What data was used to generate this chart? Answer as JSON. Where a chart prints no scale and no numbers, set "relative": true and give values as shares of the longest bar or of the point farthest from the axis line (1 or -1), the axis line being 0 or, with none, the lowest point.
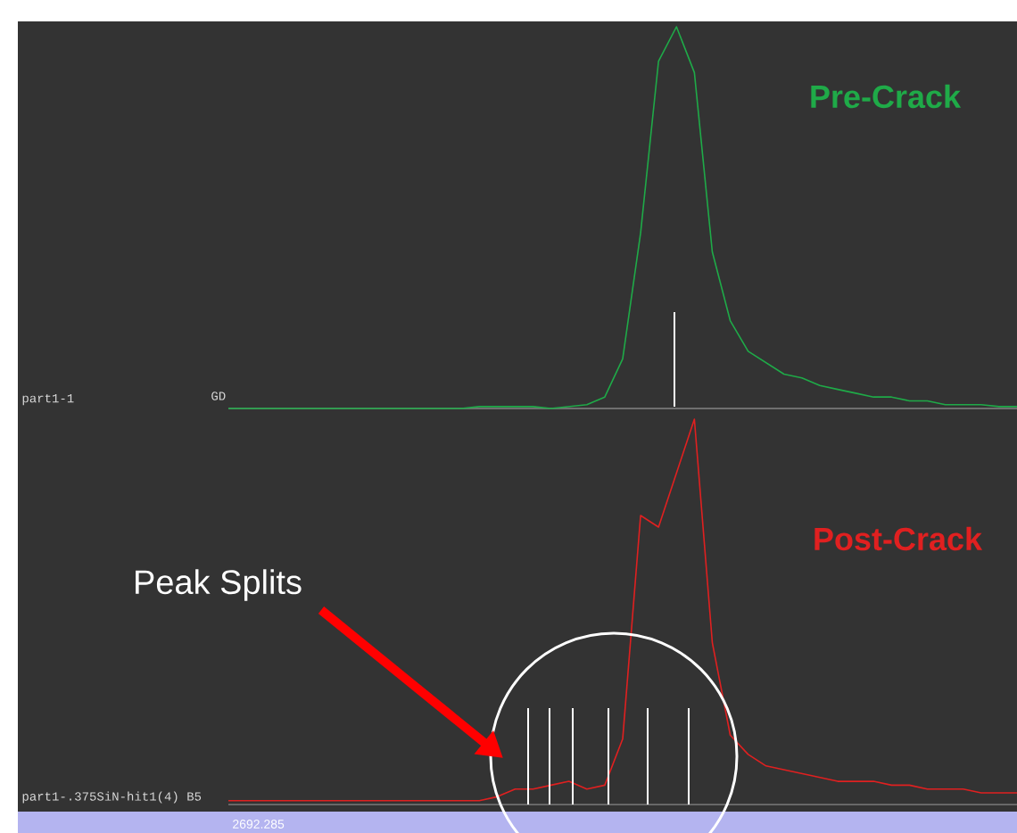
{
  "chart_data": [
    {
      "type": "line",
      "relative": true,
      "categories": [
        null,
        null,
        null,
        null,
        null,
        null,
        null,
        null,
        null,
        null,
        null,
        null,
        null,
        null,
        null,
        null,
        null,
        null,
        null,
        null,
        null,
        null,
        null,
        null,
        null,
        null,
        null,
        null,
        null,
        null,
        null,
        null,
        null,
        null,
        null,
        null,
        null,
        null,
        null,
        null,
        null,
        null,
        null,
        null,
        null
      ],
      "series": [
        {
          "name": "Pre-Crack",
          "color": "#1faa48",
          "values": [
            0,
            0,
            0,
            0,
            0,
            0,
            0,
            0,
            0,
            0,
            0,
            0,
            0,
            0,
            0.005,
            0.005,
            0.005,
            0.005,
            0.0,
            0.005,
            0.01,
            0.03,
            0.13,
            0.46,
            0.91,
            1.0,
            0.88,
            0.41,
            0.23,
            0.15,
            0.12,
            0.09,
            0.08,
            0.06,
            0.05,
            0.04,
            0.03,
            0.03,
            0.02,
            0.02,
            0.01,
            0.01,
            0.01,
            0.005,
            0.005
          ]
        }
      ],
      "annotations": [
        "part1-1",
        "GD"
      ]
    },
    {
      "type": "line",
      "relative": true,
      "categories": [
        null,
        null,
        null,
        null,
        null,
        null,
        null,
        null,
        null,
        null,
        null,
        null,
        null,
        null,
        null,
        null,
        null,
        null,
        null,
        null,
        null,
        null,
        null,
        null,
        null,
        null,
        null,
        null,
        null,
        null,
        null,
        null,
        null,
        null,
        null,
        null,
        null,
        null,
        null,
        null,
        null,
        null,
        null,
        null,
        null
      ],
      "series": [
        {
          "name": "Post-Crack",
          "color": "#e02020",
          "values": [
            0.01,
            0.01,
            0.01,
            0.01,
            0.01,
            0.01,
            0.01,
            0.01,
            0.01,
            0.01,
            0.01,
            0.01,
            0.01,
            0.01,
            0.01,
            0.02,
            0.04,
            0.04,
            0.05,
            0.06,
            0.04,
            0.05,
            0.17,
            0.75,
            0.72,
            0.86,
            1.0,
            0.42,
            0.18,
            0.13,
            0.1,
            0.09,
            0.08,
            0.07,
            0.06,
            0.06,
            0.06,
            0.05,
            0.05,
            0.04,
            0.04,
            0.04,
            0.03,
            0.03,
            0.03
          ]
        }
      ],
      "annotations": [
        "part1-.375SiN-hit1(4) B5",
        "Peak Splits",
        "2692.285"
      ]
    }
  ]
}
